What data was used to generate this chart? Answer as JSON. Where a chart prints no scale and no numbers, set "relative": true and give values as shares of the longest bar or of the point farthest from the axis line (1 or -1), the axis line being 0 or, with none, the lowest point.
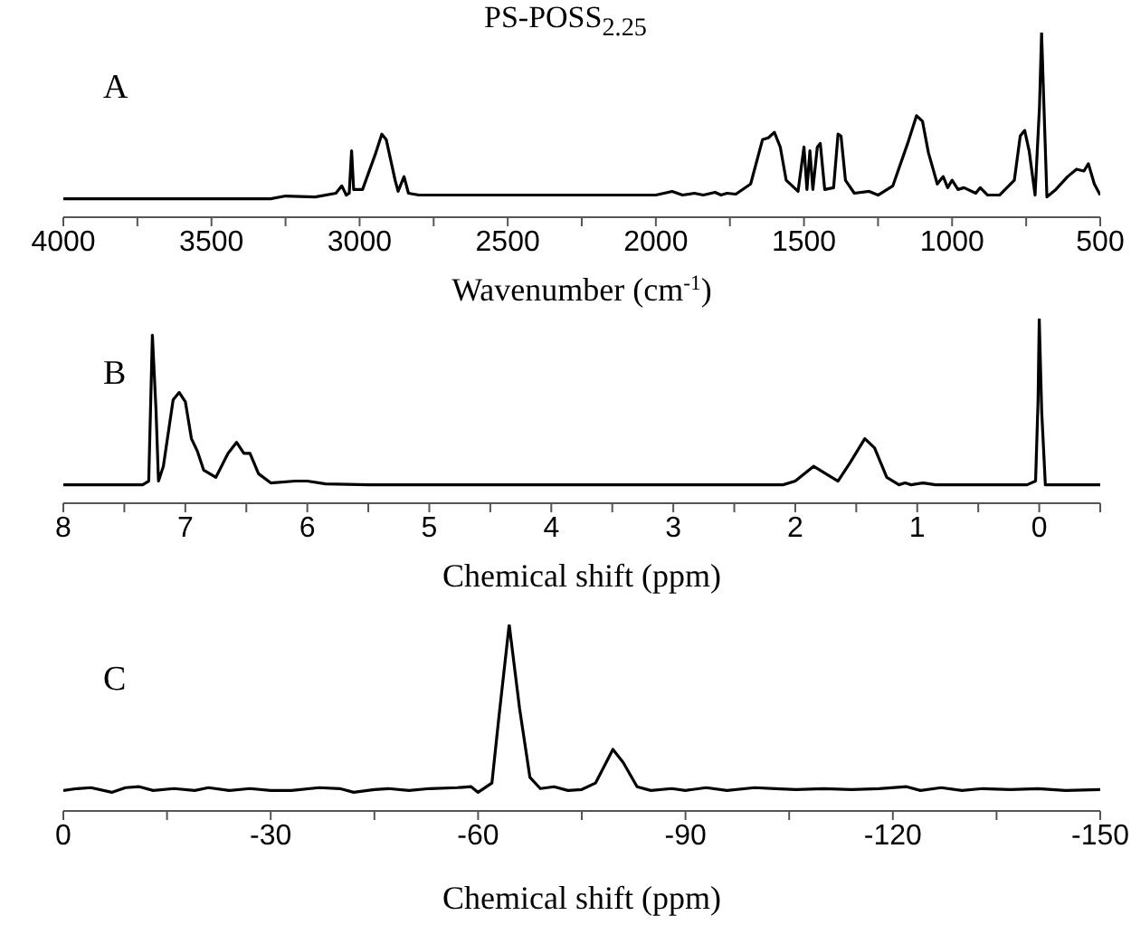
{
  "chart_data": [
    {
      "type": "line",
      "title": "PS-POSS$_{2.25}$",
      "xlabel": "Wavenumber (cm$^{-1}$)",
      "annotations": [
        "A"
      ],
      "relative": true,
      "xlim": [
        4000,
        500
      ],
      "xticks": [
        4000,
        {
          "value": 3750,
          "label": null
        },
        3500,
        {
          "value": 3250,
          "label": null
        },
        3000,
        {
          "value": 2750,
          "label": null
        },
        2500,
        {
          "value": 2250,
          "label": null
        },
        2000,
        {
          "value": 1750,
          "label": null
        },
        1500,
        {
          "value": 1250,
          "label": null
        },
        1000,
        {
          "value": 750,
          "label": null
        },
        500
      ],
      "x": [
        4000,
        3300,
        3250,
        3150,
        3080,
        3060,
        3045,
        3035,
        3027,
        3020,
        2990,
        2945,
        2925,
        2910,
        2880,
        2870,
        2850,
        2835,
        2800,
        2500,
        2000,
        1945,
        1910,
        1870,
        1840,
        1800,
        1780,
        1760,
        1730,
        1680,
        1640,
        1620,
        1600,
        1580,
        1560,
        1520,
        1500,
        1490,
        1480,
        1470,
        1455,
        1445,
        1430,
        1400,
        1385,
        1375,
        1360,
        1330,
        1280,
        1250,
        1200,
        1150,
        1120,
        1100,
        1080,
        1050,
        1030,
        1015,
        1000,
        980,
        960,
        920,
        905,
        880,
        840,
        790,
        770,
        755,
        740,
        720,
        705,
        698,
        690,
        680,
        650,
        610,
        580,
        555,
        540,
        520,
        500
      ],
      "series": [
        {
          "color": "#000000",
          "values": [
            0.1,
            0.1,
            0.115,
            0.11,
            0.13,
            0.17,
            0.12,
            0.13,
            0.36,
            0.15,
            0.15,
            0.35,
            0.45,
            0.42,
            0.2,
            0.14,
            0.22,
            0.13,
            0.12,
            0.12,
            0.12,
            0.14,
            0.12,
            0.13,
            0.12,
            0.135,
            0.12,
            0.13,
            0.125,
            0.18,
            0.42,
            0.43,
            0.46,
            0.38,
            0.2,
            0.14,
            0.38,
            0.15,
            0.36,
            0.15,
            0.38,
            0.4,
            0.15,
            0.16,
            0.45,
            0.44,
            0.2,
            0.13,
            0.14,
            0.12,
            0.17,
            0.4,
            0.55,
            0.52,
            0.35,
            0.18,
            0.22,
            0.16,
            0.2,
            0.15,
            0.16,
            0.13,
            0.16,
            0.12,
            0.12,
            0.2,
            0.44,
            0.47,
            0.36,
            0.12,
            0.6,
            1.0,
            0.6,
            0.11,
            0.15,
            0.22,
            0.26,
            0.25,
            0.29,
            0.18,
            0.12
          ]
        }
      ]
    },
    {
      "type": "line",
      "xlabel": "Chemical shift (ppm)",
      "annotations": [
        "B"
      ],
      "relative": true,
      "xlim": [
        8,
        -0.5
      ],
      "xticks": [
        8,
        {
          "value": 7.5,
          "label": null
        },
        7,
        {
          "value": 6.5,
          "label": null
        },
        6,
        {
          "value": 5.5,
          "label": null
        },
        5,
        {
          "value": 4.5,
          "label": null
        },
        4,
        {
          "value": 3.5,
          "label": null
        },
        3,
        {
          "value": 2.5,
          "label": null
        },
        2,
        {
          "value": 1.5,
          "label": null
        },
        1,
        {
          "value": 0.5,
          "label": null
        },
        0,
        {
          "value": -0.5,
          "label": null
        }
      ],
      "x": [
        8,
        7.35,
        7.3,
        7.27,
        7.24,
        7.22,
        7.18,
        7.1,
        7.05,
        7.0,
        6.95,
        6.9,
        6.85,
        6.75,
        6.65,
        6.58,
        6.52,
        6.47,
        6.4,
        6.3,
        6.1,
        6.0,
        5.85,
        5.5,
        3,
        2.1,
        2.0,
        1.85,
        1.75,
        1.65,
        1.55,
        1.43,
        1.35,
        1.25,
        1.15,
        1.1,
        1.05,
        0.95,
        0.85,
        0.1,
        0.03,
        0.01,
        0,
        -0.02,
        -0.05,
        -0.5
      ],
      "series": [
        {
          "color": "#000000",
          "values": [
            0.1,
            0.1,
            0.12,
            0.91,
            0.5,
            0.12,
            0.2,
            0.56,
            0.6,
            0.55,
            0.35,
            0.28,
            0.18,
            0.14,
            0.27,
            0.33,
            0.27,
            0.27,
            0.16,
            0.11,
            0.12,
            0.12,
            0.105,
            0.1,
            0.1,
            0.1,
            0.12,
            0.2,
            0.16,
            0.12,
            0.22,
            0.35,
            0.3,
            0.14,
            0.1,
            0.11,
            0.1,
            0.11,
            0.1,
            0.1,
            0.12,
            0.55,
            1.0,
            0.5,
            0.1,
            0.1
          ]
        }
      ]
    },
    {
      "type": "line",
      "xlabel": "Chemical shift (ppm)",
      "annotations": [
        "C"
      ],
      "relative": true,
      "xlim": [
        0,
        -150
      ],
      "xticks": [
        0,
        {
          "value": -15,
          "label": null
        },
        -30,
        {
          "value": -45,
          "label": null
        },
        -60,
        {
          "value": -75,
          "label": null
        },
        -90,
        {
          "value": -105,
          "label": null
        },
        -120,
        {
          "value": -135,
          "label": null
        },
        -150
      ],
      "x": [
        0,
        -2,
        -4,
        -7,
        -9,
        -11,
        -13,
        -16,
        -19,
        -21,
        -24,
        -27,
        -30,
        -33,
        -37,
        -40,
        -42,
        -45,
        -47,
        -50,
        -53,
        -57,
        -59,
        -60,
        -62,
        -63,
        -64.5,
        -66,
        -67.5,
        -69,
        -71,
        -73,
        -75,
        -77,
        -79.5,
        -81,
        -83,
        -85,
        -88,
        -90,
        -93,
        -96,
        -100,
        -103,
        -106,
        -110,
        -114,
        -118,
        -122,
        -124,
        -127,
        -130,
        -133,
        -137,
        -141,
        -145,
        -150
      ],
      "series": [
        {
          "color": "#000000",
          "values": [
            0.11,
            0.12,
            0.125,
            0.1,
            0.125,
            0.13,
            0.11,
            0.12,
            0.11,
            0.125,
            0.11,
            0.12,
            0.11,
            0.11,
            0.125,
            0.12,
            0.1,
            0.115,
            0.12,
            0.11,
            0.12,
            0.125,
            0.13,
            0.1,
            0.15,
            0.5,
            1.0,
            0.55,
            0.18,
            0.12,
            0.13,
            0.11,
            0.115,
            0.15,
            0.33,
            0.26,
            0.13,
            0.11,
            0.12,
            0.11,
            0.125,
            0.11,
            0.125,
            0.12,
            0.115,
            0.12,
            0.115,
            0.12,
            0.13,
            0.11,
            0.125,
            0.11,
            0.12,
            0.115,
            0.12,
            0.11,
            0.115
          ]
        }
      ]
    }
  ]
}
